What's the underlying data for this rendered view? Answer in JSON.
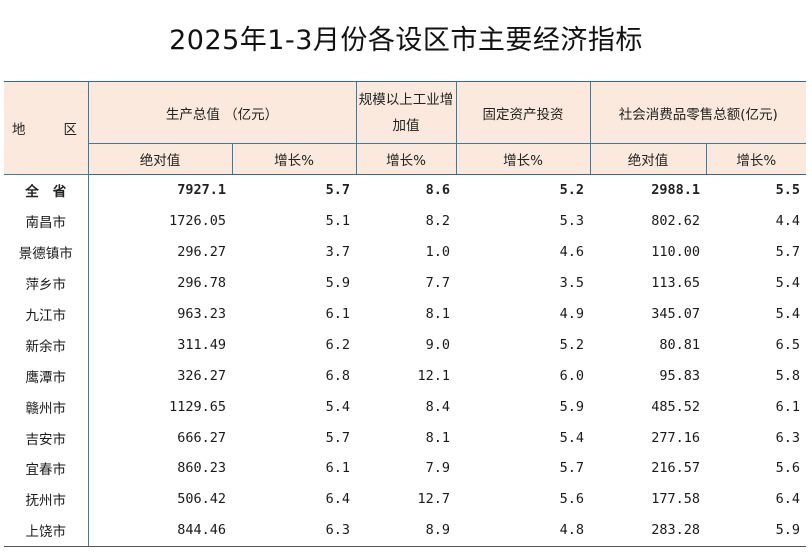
{
  "title": "2025年1-3月份各设区市主要经济指标",
  "header": {
    "region": [
      "地",
      "区"
    ],
    "gdp": "生产总值  （亿元）",
    "industry": "规模以上工业增加值",
    "investment": "固定资产投资",
    "retail": "社会消费品零售总额(亿元)",
    "abs": "绝对值",
    "growth": "增长%"
  },
  "rows": [
    {
      "region": "全省",
      "gdp": "7927.1",
      "gdp_growth": "5.7",
      "industry": "8.6",
      "investment": "5.2",
      "retail": "2988.1",
      "retail_growth": "5.5"
    },
    {
      "region": "南昌市",
      "gdp": "1726.05",
      "gdp_growth": "5.1",
      "industry": "8.2",
      "investment": "5.3",
      "retail": "802.62",
      "retail_growth": "4.4"
    },
    {
      "region": "景德镇市",
      "gdp": "296.27",
      "gdp_growth": "3.7",
      "industry": "1.0",
      "investment": "4.6",
      "retail": "110.00",
      "retail_growth": "5.7"
    },
    {
      "region": "萍乡市",
      "gdp": "296.78",
      "gdp_growth": "5.9",
      "industry": "7.7",
      "investment": "3.5",
      "retail": "113.65",
      "retail_growth": "5.4"
    },
    {
      "region": "九江市",
      "gdp": "963.23",
      "gdp_growth": "6.1",
      "industry": "8.1",
      "investment": "4.9",
      "retail": "345.07",
      "retail_growth": "5.4"
    },
    {
      "region": "新余市",
      "gdp": "311.49",
      "gdp_growth": "6.2",
      "industry": "9.0",
      "investment": "5.2",
      "retail": "80.81",
      "retail_growth": "6.5"
    },
    {
      "region": "鹰潭市",
      "gdp": "326.27",
      "gdp_growth": "6.8",
      "industry": "12.1",
      "investment": "6.0",
      "retail": "95.83",
      "retail_growth": "5.8"
    },
    {
      "region": "赣州市",
      "gdp": "1129.65",
      "gdp_growth": "5.4",
      "industry": "8.4",
      "investment": "5.9",
      "retail": "485.52",
      "retail_growth": "6.1"
    },
    {
      "region": "吉安市",
      "gdp": "666.27",
      "gdp_growth": "5.7",
      "industry": "8.1",
      "investment": "5.4",
      "retail": "277.16",
      "retail_growth": "6.3"
    },
    {
      "region": "宜春市",
      "gdp": "860.23",
      "gdp_growth": "6.1",
      "industry": "7.9",
      "investment": "5.7",
      "retail": "216.57",
      "retail_growth": "5.6"
    },
    {
      "region": "抚州市",
      "gdp": "506.42",
      "gdp_growth": "6.4",
      "industry": "12.7",
      "investment": "5.6",
      "retail": "177.58",
      "retail_growth": "6.4"
    },
    {
      "region": "上饶市",
      "gdp": "844.46",
      "gdp_growth": "6.3",
      "industry": "8.9",
      "investment": "4.8",
      "retail": "283.28",
      "retail_growth": "5.9"
    }
  ]
}
